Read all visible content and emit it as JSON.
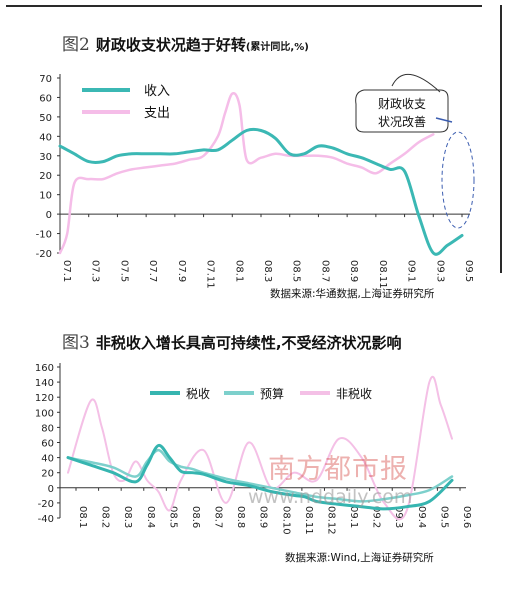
{
  "figure2": {
    "fig_no": "图2",
    "title": "财政收支状况趋于好转",
    "unit": "(累计同比,%)",
    "source": "数据来源:华通数据,上海证券研究所",
    "annotation": "财政收支\n状况改善"
  },
  "figure3": {
    "fig_no": "图3",
    "title": "非税收入增长具高可持续性,不受经济状况影响",
    "source": "数据来源:Wind,上海证券研究所"
  },
  "watermark": {
    "name": "南方都市报",
    "url": "www.nddaily.com"
  },
  "colors": {
    "revenue": "#3bb8b4",
    "expenditure": "#f5bde8",
    "tax": "#36b5b0",
    "budget": "#7dd0cc",
    "nontax": "#f4c0e6",
    "annotation": "#3b5db0",
    "watermark_red": "#d9534f",
    "watermark_gray": "#9a9a9a"
  },
  "chart_data": [
    {
      "type": "line",
      "title": "财政收支状况趋于好转",
      "ylim": [
        -20,
        70
      ],
      "yticks": [
        -20,
        -10,
        0,
        10,
        20,
        30,
        40,
        50,
        60,
        70
      ],
      "xticks": [
        "07.1",
        "07.3",
        "07.5",
        "07.7",
        "07.9",
        "07.11",
        "08.1",
        "08.3",
        "08.5",
        "08.7",
        "08.9",
        "08.11",
        "09.1",
        "09.3",
        "09.5"
      ],
      "legend": "top-left",
      "series": [
        {
          "name": "收入",
          "x": [
            0,
            0.5,
            1,
            2,
            3,
            4,
            5,
            6,
            7,
            8,
            9,
            10,
            11,
            12,
            13,
            14,
            15,
            16,
            17,
            18,
            19,
            20,
            21,
            22,
            23,
            24,
            25,
            26,
            27,
            28
          ],
          "values": [
            35,
            33,
            31,
            27,
            27,
            30,
            31,
            31,
            31,
            31,
            32,
            33,
            33,
            38,
            43,
            43,
            39,
            31,
            31,
            35,
            34,
            31,
            29,
            26,
            23,
            22,
            -1,
            -20,
            -16,
            -11
          ]
        },
        {
          "name": "支出",
          "x": [
            0,
            0.5,
            1,
            2,
            3,
            4,
            5,
            6,
            7,
            8,
            9,
            10,
            11,
            11.5,
            12,
            12.5,
            13,
            14,
            15,
            16,
            17,
            18,
            19,
            20,
            21,
            22,
            23,
            24,
            25,
            26
          ],
          "values": [
            -20,
            -10,
            16,
            18,
            18,
            21,
            23,
            24,
            25,
            26,
            28,
            30,
            40,
            52,
            62,
            56,
            28,
            29,
            31,
            30,
            30,
            30,
            29,
            26,
            24,
            21,
            26,
            31,
            37,
            41
          ]
        }
      ]
    },
    {
      "type": "line",
      "title": "非税收入增长具高可持续性,不受经济状况影响",
      "ylim": [
        -40,
        160
      ],
      "yticks": [
        -40,
        -20,
        0,
        20,
        40,
        60,
        80,
        100,
        120,
        140,
        160
      ],
      "xticks": [
        "08.1",
        "08.2",
        "08.3",
        "08.4",
        "08.5",
        "08.6",
        "08.7",
        "08.8",
        "08.9",
        "08.10",
        "08.11",
        "08.12",
        "09.1",
        "09.2",
        "09.3",
        "09.4",
        "09.5",
        "09.6"
      ],
      "legend": "top",
      "series": [
        {
          "name": "税收",
          "x": [
            0,
            1,
            2,
            3,
            3.5,
            4,
            4.5,
            5,
            5.5,
            6,
            7,
            8,
            9,
            10,
            10.5,
            11,
            12,
            13,
            14,
            15,
            16,
            17
          ],
          "values": [
            40,
            30,
            20,
            8,
            30,
            56,
            40,
            22,
            20,
            18,
            8,
            3,
            -5,
            -10,
            -12,
            -18,
            -22,
            -25,
            -28,
            -25,
            -18,
            10
          ]
        },
        {
          "name": "预算",
          "x": [
            0,
            1,
            2,
            3,
            3.5,
            4,
            4.5,
            5,
            5.5,
            6,
            7,
            8,
            9,
            10,
            11,
            12,
            13,
            14,
            15,
            16,
            17
          ],
          "values": [
            40,
            34,
            27,
            15,
            35,
            50,
            35,
            28,
            25,
            20,
            12,
            6,
            0,
            -6,
            -12,
            -15,
            -18,
            -15,
            -10,
            -3,
            15
          ]
        },
        {
          "name": "非税收",
          "x": [
            0,
            1,
            1.5,
            2,
            2.5,
            3,
            3.5,
            4,
            4.5,
            5,
            6,
            7,
            8,
            9,
            10,
            11,
            12,
            13,
            14,
            15,
            16,
            16.5,
            17
          ],
          "values": [
            20,
            115,
            80,
            20,
            10,
            35,
            10,
            -5,
            -30,
            10,
            50,
            -20,
            60,
            0,
            20,
            10,
            65,
            40,
            -20,
            -30,
            140,
            110,
            65
          ]
        }
      ]
    }
  ]
}
